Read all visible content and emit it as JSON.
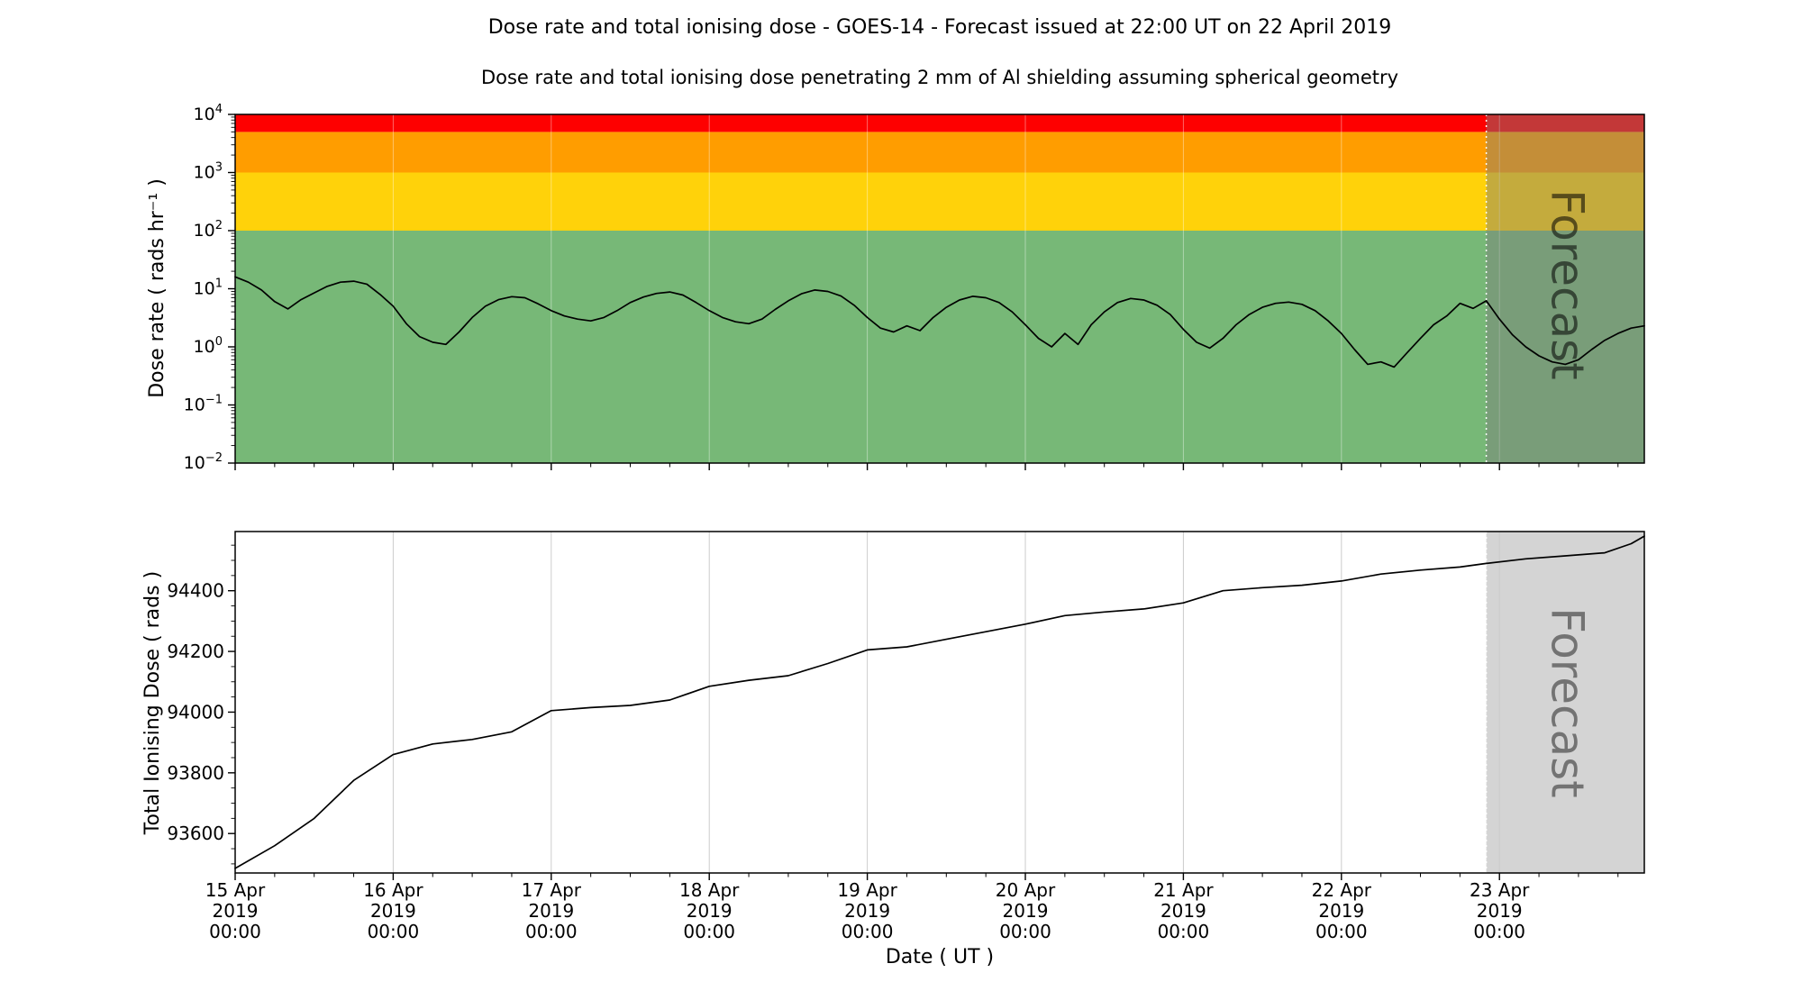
{
  "header": {
    "title": "Dose rate and total ionising dose - GOES-14 - Forecast issued at 22:00 UT on 22 April 2019",
    "subtitle": "Dose rate and total ionising dose penetrating 2 mm of Al shielding assuming spherical geometry"
  },
  "x_axis": {
    "label": "Date ( UT )",
    "range_hours": [
      0,
      214
    ],
    "major_tick_hours": [
      0,
      24,
      48,
      72,
      96,
      120,
      144,
      168,
      192
    ],
    "major_tick_labels": [
      [
        "15 Apr",
        "2019",
        "00:00"
      ],
      [
        "16 Apr",
        "2019",
        "00:00"
      ],
      [
        "17 Apr",
        "2019",
        "00:00"
      ],
      [
        "18 Apr",
        "2019",
        "00:00"
      ],
      [
        "19 Apr",
        "2019",
        "00:00"
      ],
      [
        "20 Apr",
        "2019",
        "00:00"
      ],
      [
        "21 Apr",
        "2019",
        "00:00"
      ],
      [
        "22 Apr",
        "2019",
        "00:00"
      ],
      [
        "23 Apr",
        "2019",
        "00:00"
      ]
    ],
    "minor_tick_step_hours": 6
  },
  "forecast": {
    "label": "Forecast",
    "start_hour": 190,
    "issued": "22:00 UT on 22 April 2019"
  },
  "colors": {
    "red_band": "#fe0000",
    "orange_band": "#ff9d00",
    "yellow_band": "#ffd20a",
    "green_band": "#77b877",
    "forecast_overlay": "#7d7d7d",
    "forecast_overlay_bottom": "#c9c9c9",
    "watermark_gray": "#6e6e6e",
    "line": "#000000",
    "grid_bottom": "#cccccc"
  },
  "chart_data": [
    {
      "name": "dose-rate-panel",
      "type": "line",
      "yscale": "log",
      "ylabel": "Dose rate ( rads hr⁻¹ )",
      "ylim": [
        0.01,
        10000
      ],
      "ytick_exponents": [
        4,
        3,
        2,
        1,
        0,
        -1,
        -2
      ],
      "grid": "vertical",
      "threshold_bands": [
        {
          "name": "green",
          "range": [
            0.01,
            100
          ],
          "color": "#77b877"
        },
        {
          "name": "yellow",
          "range": [
            100,
            1000
          ],
          "color": "#ffd20a"
        },
        {
          "name": "orange",
          "range": [
            1000,
            5000
          ],
          "color": "#ff9d00"
        },
        {
          "name": "red",
          "range": [
            5000,
            10000
          ],
          "color": "#fe0000"
        }
      ],
      "series": {
        "name": "dose_rate_rads_per_hr",
        "x_start_hour": 0,
        "x_step_hours": 2,
        "values": [
          16,
          13,
          9.5,
          6,
          4.5,
          6.5,
          8.5,
          11,
          13,
          13.5,
          12,
          8,
          5,
          2.5,
          1.5,
          1.2,
          1.1,
          1.8,
          3.2,
          5,
          6.5,
          7.3,
          7,
          5.5,
          4.2,
          3.4,
          3,
          2.8,
          3.2,
          4.2,
          5.8,
          7.2,
          8.3,
          8.8,
          7.8,
          5.8,
          4.2,
          3.2,
          2.7,
          2.5,
          3,
          4.4,
          6.2,
          8.2,
          9.5,
          9,
          7.5,
          5.2,
          3.2,
          2.1,
          1.8,
          2.3,
          1.9,
          3.2,
          4.8,
          6.4,
          7.4,
          7,
          5.8,
          4,
          2.4,
          1.4,
          1,
          1.7,
          1.1,
          2.4,
          4,
          5.8,
          6.8,
          6.4,
          5.2,
          3.6,
          2,
          1.2,
          0.95,
          1.4,
          2.4,
          3.6,
          4.8,
          5.6,
          5.9,
          5.4,
          4.2,
          2.8,
          1.7,
          0.9,
          0.5,
          0.55,
          0.45,
          0.8,
          1.4,
          2.4,
          3.4,
          5.6,
          4.6,
          6.2,
          3,
          1.6,
          1,
          0.7,
          0.55,
          0.5,
          0.6,
          0.9,
          1.3,
          1.7,
          2.1,
          2.3
        ]
      }
    },
    {
      "name": "total-dose-panel",
      "type": "line",
      "yscale": "linear",
      "ylabel": "Total Ionising Dose ( rads )",
      "ylim": [
        93470,
        94595
      ],
      "ytick_values": [
        93600,
        93800,
        94000,
        94200,
        94400
      ],
      "ytick_minor_step": 50,
      "grid": "vertical",
      "series": {
        "name": "total_ionising_dose_rads",
        "x_hours": [
          0,
          6,
          12,
          18,
          24,
          30,
          36,
          42,
          48,
          54,
          60,
          66,
          72,
          78,
          84,
          90,
          96,
          102,
          108,
          114,
          120,
          126,
          132,
          138,
          144,
          150,
          156,
          162,
          168,
          174,
          180,
          186,
          190,
          196,
          202,
          208,
          212,
          214
        ],
        "values": [
          93485,
          93560,
          93650,
          93775,
          93860,
          93895,
          93910,
          93935,
          94005,
          94015,
          94022,
          94040,
          94085,
          94105,
          94120,
          94160,
          94205,
          94215,
          94240,
          94265,
          94290,
          94318,
          94330,
          94340,
          94360,
          94400,
          94410,
          94418,
          94432,
          94455,
          94468,
          94478,
          94490,
          94505,
          94515,
          94525,
          94555,
          94580
        ]
      }
    }
  ]
}
